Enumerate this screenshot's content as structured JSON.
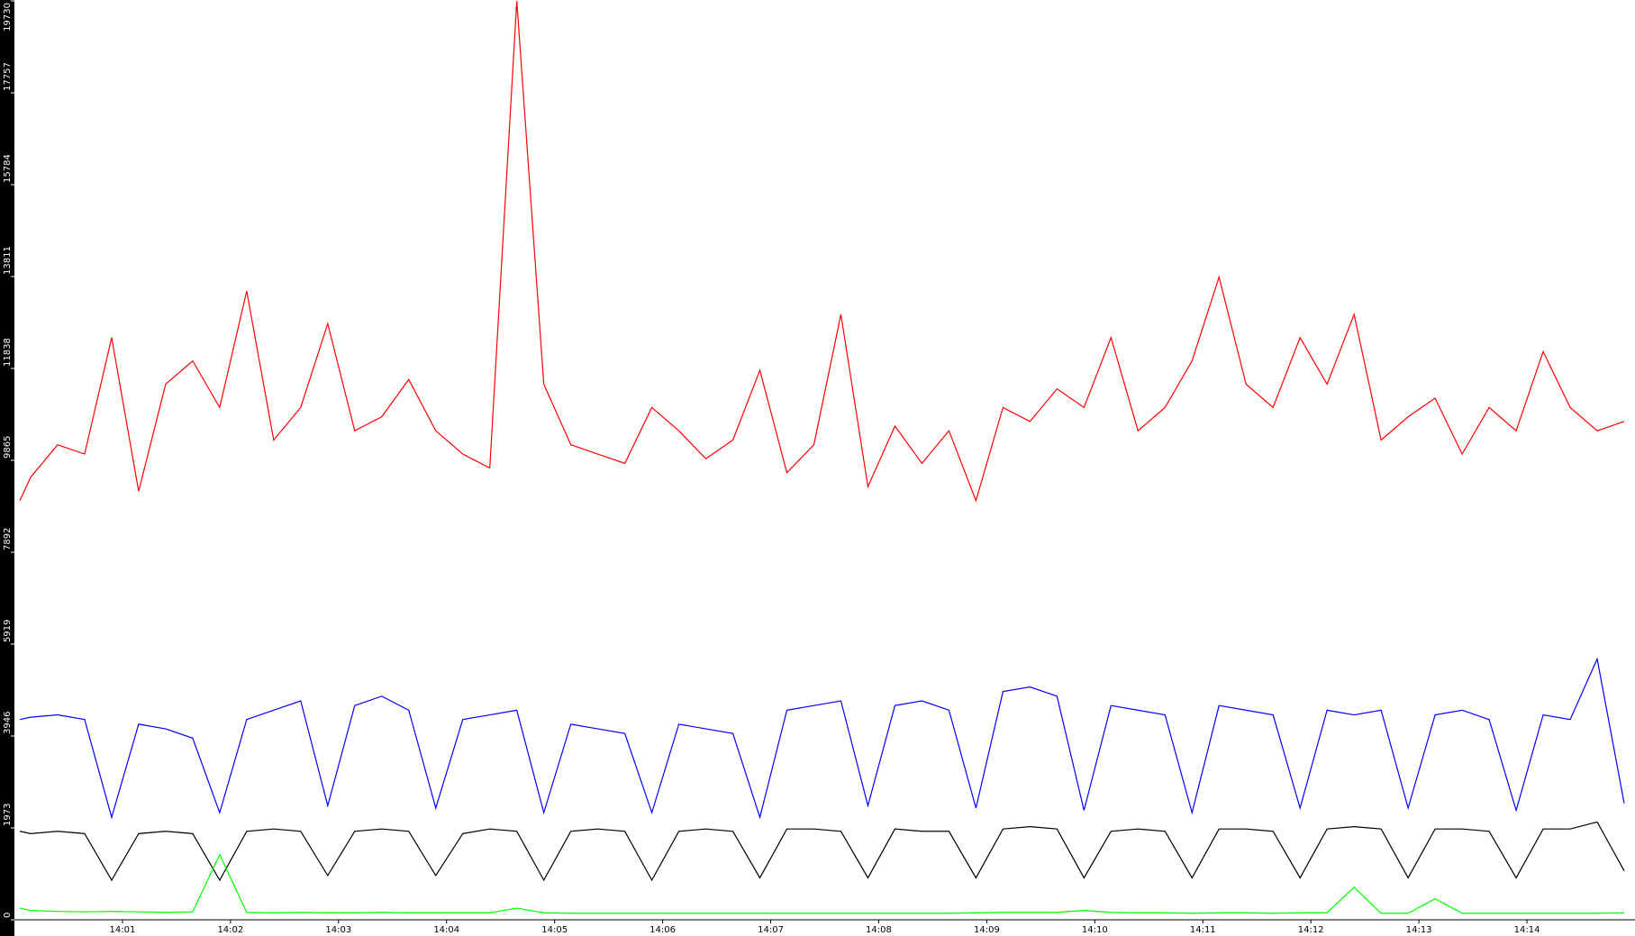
{
  "chart_data": {
    "type": "line",
    "x": [
      0.05,
      0.15,
      0.4,
      0.65,
      0.9,
      1.15,
      1.4,
      1.65,
      1.9,
      2.15,
      2.4,
      2.65,
      2.9,
      3.15,
      3.4,
      3.65,
      3.9,
      4.15,
      4.4,
      4.65,
      4.9,
      5.15,
      5.4,
      5.65,
      5.9,
      6.15,
      6.4,
      6.65,
      6.9,
      7.15,
      7.4,
      7.65,
      7.9,
      8.15,
      8.4,
      8.65,
      8.9,
      9.15,
      9.4,
      9.65,
      9.9,
      10.15,
      10.4,
      10.65,
      10.9,
      11.15,
      11.4,
      11.65,
      11.9,
      12.15,
      12.4,
      12.65,
      12.9,
      13.15,
      13.4,
      13.65,
      13.9,
      14.15,
      14.4,
      14.65,
      14.9
    ],
    "xlim": [
      0,
      15
    ],
    "xticks": [
      {
        "value": 1,
        "label": "14:01"
      },
      {
        "value": 2,
        "label": "14:02"
      },
      {
        "value": 3,
        "label": "14:03"
      },
      {
        "value": 4,
        "label": "14:04"
      },
      {
        "value": 5,
        "label": "14:05"
      },
      {
        "value": 6,
        "label": "14:06"
      },
      {
        "value": 7,
        "label": "14:07"
      },
      {
        "value": 8,
        "label": "14:08"
      },
      {
        "value": 9,
        "label": "14:09"
      },
      {
        "value": 10,
        "label": "14:10"
      },
      {
        "value": 11,
        "label": "14:11"
      },
      {
        "value": 12,
        "label": "14:12"
      },
      {
        "value": 13,
        "label": "14:13"
      },
      {
        "value": 14,
        "label": "14:14"
      }
    ],
    "ylim": [
      0,
      19730
    ],
    "yticks": [
      0,
      1973,
      3946,
      5919,
      7892,
      9865,
      11838,
      13811,
      15784,
      17757,
      19730
    ],
    "series": [
      {
        "color": "#ff0000",
        "values": [
          9000,
          9500,
          10200,
          10000,
          12500,
          9200,
          11500,
          12000,
          11000,
          13500,
          10300,
          11000,
          12800,
          10500,
          10800,
          11600,
          10500,
          10000,
          9700,
          19730,
          11500,
          10200,
          10000,
          9800,
          11000,
          10500,
          9900,
          10300,
          11800,
          9600,
          10200,
          13000,
          9300,
          10600,
          9800,
          10500,
          9000,
          11000,
          10700,
          11400,
          11000,
          12500,
          10500,
          11000,
          12000,
          13800,
          11500,
          11000,
          12500,
          11500,
          13000,
          10300,
          10800,
          11200,
          10000,
          11000,
          10500,
          12200,
          11000,
          10500,
          10700
        ]
      },
      {
        "color": "#0000ff",
        "values": [
          4300,
          4350,
          4400,
          4300,
          2200,
          4200,
          4100,
          3900,
          2300,
          4300,
          4500,
          4700,
          2450,
          4600,
          4800,
          4500,
          2400,
          4300,
          4400,
          4500,
          2300,
          4200,
          4100,
          4000,
          2300,
          4200,
          4100,
          4000,
          2200,
          4500,
          4600,
          4700,
          2450,
          4600,
          4700,
          4500,
          2400,
          4900,
          5000,
          4800,
          2350,
          4600,
          4500,
          4400,
          2300,
          4600,
          4500,
          4400,
          2400,
          4500,
          4400,
          4500,
          2400,
          4400,
          4500,
          4300,
          2350,
          4400,
          4300,
          5600,
          2500
        ]
      },
      {
        "color": "#000000",
        "values": [
          1900,
          1850,
          1900,
          1850,
          850,
          1850,
          1900,
          1850,
          850,
          1900,
          1950,
          1900,
          950,
          1900,
          1950,
          1900,
          950,
          1850,
          1950,
          1900,
          850,
          1900,
          1950,
          1900,
          850,
          1900,
          1950,
          1900,
          900,
          1950,
          1950,
          1900,
          900,
          1950,
          1900,
          1900,
          900,
          1950,
          2000,
          1950,
          900,
          1900,
          1950,
          1900,
          900,
          1950,
          1950,
          1900,
          900,
          1950,
          2000,
          1950,
          900,
          1950,
          1950,
          1900,
          900,
          1950,
          1950,
          2100,
          1050
        ]
      },
      {
        "color": "#00ff00",
        "values": [
          250,
          200,
          180,
          170,
          180,
          170,
          160,
          170,
          1400,
          160,
          150,
          160,
          150,
          150,
          160,
          150,
          150,
          150,
          150,
          250,
          150,
          140,
          140,
          140,
          140,
          140,
          140,
          140,
          140,
          140,
          140,
          140,
          140,
          140,
          140,
          140,
          150,
          160,
          160,
          160,
          200,
          160,
          150,
          150,
          140,
          150,
          150,
          140,
          150,
          150,
          700,
          140,
          140,
          450,
          140,
          140,
          140,
          140,
          140,
          140,
          150
        ]
      }
    ]
  }
}
